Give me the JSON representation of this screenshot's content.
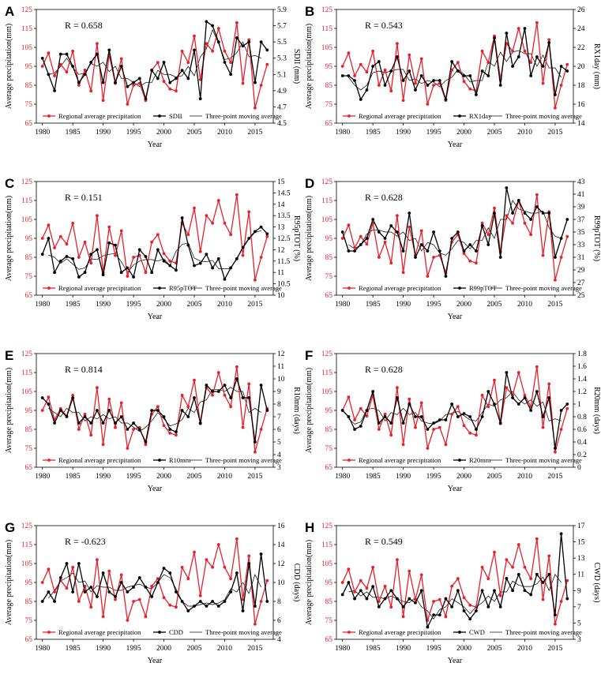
{
  "figure": {
    "x_title": "Year",
    "left_y_title": "Average precipitation(mm)",
    "legend_precip": "Regional average precipitation",
    "legend_ma": "Three-point moving average",
    "precip_color": "#e8202a",
    "index_color": "#000000"
  },
  "chart_data": [
    {
      "id": "A",
      "letter": "A",
      "type": "line",
      "r_label": "R = 0.658",
      "index_name": "SDII",
      "right_y_title": "SDII (mm)",
      "years": [
        1980,
        1981,
        1982,
        1983,
        1984,
        1985,
        1986,
        1987,
        1988,
        1989,
        1990,
        1991,
        1992,
        1993,
        1994,
        1995,
        1996,
        1997,
        1998,
        1999,
        2000,
        2001,
        2002,
        2003,
        2004,
        2005,
        2006,
        2007,
        2008,
        2009,
        2010,
        2011,
        2012,
        2013,
        2014,
        2015,
        2016,
        2017
      ],
      "precip": [
        95,
        102,
        90,
        96,
        92,
        103,
        85,
        93,
        82,
        107,
        77,
        101,
        86,
        99,
        75,
        85,
        86,
        77,
        93,
        97,
        87,
        83,
        82,
        103,
        97,
        111,
        88,
        107,
        103,
        115,
        103,
        97,
        118,
        86,
        109,
        73,
        85,
        96
      ],
      "index": [
        5.3,
        5.1,
        4.9,
        5.35,
        5.35,
        5.2,
        5.0,
        5.1,
        5.25,
        5.35,
        5.0,
        5.4,
        5.0,
        5.2,
        4.95,
        5.0,
        5.05,
        4.8,
        5.15,
        5.05,
        5.25,
        5.0,
        5.05,
        5.15,
        5.05,
        5.4,
        4.8,
        5.75,
        5.7,
        5.5,
        5.25,
        5.1,
        5.55,
        5.45,
        5.5,
        5.0,
        5.5,
        5.4
      ],
      "x_ticks": [
        1980,
        1985,
        1990,
        1995,
        2000,
        2005,
        2010,
        2015
      ],
      "left_ticks": [
        65,
        75,
        85,
        95,
        105,
        115,
        125
      ],
      "right_ticks": [
        "4.5",
        "4.7",
        "4.9",
        "5.1",
        "5.3",
        "5.5",
        "5.7",
        "5.9"
      ],
      "left_range": [
        65,
        125
      ],
      "right_range": [
        4.5,
        5.9
      ]
    },
    {
      "id": "B",
      "letter": "B",
      "type": "line",
      "r_label": "R = 0.543",
      "index_name": "RX1day",
      "right_y_title": "RX1day (mm)",
      "years": [
        1980,
        1981,
        1982,
        1983,
        1984,
        1985,
        1986,
        1987,
        1988,
        1989,
        1990,
        1991,
        1992,
        1993,
        1994,
        1995,
        1996,
        1997,
        1998,
        1999,
        2000,
        2001,
        2002,
        2003,
        2004,
        2005,
        2006,
        2007,
        2008,
        2009,
        2010,
        2011,
        2012,
        2013,
        2014,
        2015,
        2016,
        2017
      ],
      "precip": [
        95,
        102,
        90,
        96,
        92,
        103,
        85,
        93,
        82,
        107,
        77,
        101,
        86,
        99,
        75,
        85,
        86,
        77,
        93,
        97,
        87,
        83,
        82,
        103,
        97,
        111,
        88,
        107,
        103,
        115,
        103,
        97,
        118,
        86,
        109,
        73,
        85,
        96
      ],
      "index": [
        19,
        19,
        18.5,
        16.5,
        17.5,
        20,
        20.5,
        18,
        19.5,
        21,
        18.5,
        19.5,
        17.5,
        19,
        18,
        18.5,
        18.5,
        16.5,
        20.5,
        19.5,
        19,
        19,
        17,
        19.5,
        19,
        23,
        18,
        23.5,
        20,
        21,
        24,
        19,
        21,
        20,
        22.5,
        17,
        20,
        19.5
      ],
      "x_ticks": [
        1980,
        1985,
        1990,
        1995,
        2000,
        2005,
        2010,
        2015
      ],
      "left_ticks": [
        65,
        75,
        85,
        95,
        105,
        115,
        125
      ],
      "right_ticks": [
        "14",
        "16",
        "18",
        "20",
        "22",
        "24",
        "26"
      ],
      "left_range": [
        65,
        125
      ],
      "right_range": [
        14,
        26
      ]
    },
    {
      "id": "C",
      "letter": "C",
      "type": "line",
      "r_label": "R = 0.151",
      "index_name": "R95pTOT",
      "right_y_title": "R95pTOT (%)",
      "years": [
        1980,
        1981,
        1982,
        1983,
        1984,
        1985,
        1986,
        1987,
        1988,
        1989,
        1990,
        1991,
        1992,
        1993,
        1994,
        1995,
        1996,
        1997,
        1998,
        1999,
        2000,
        2001,
        2002,
        2003,
        2004,
        2005,
        2006,
        2007,
        2008,
        2009,
        2010,
        2011,
        2012,
        2013,
        2014,
        2015,
        2016,
        2017
      ],
      "precip": [
        95,
        102,
        90,
        96,
        92,
        103,
        85,
        93,
        82,
        107,
        77,
        101,
        86,
        99,
        75,
        85,
        86,
        77,
        93,
        97,
        87,
        83,
        82,
        103,
        97,
        111,
        88,
        107,
        103,
        115,
        103,
        97,
        118,
        86,
        109,
        73,
        85,
        96
      ],
      "index": [
        11.8,
        12.5,
        11.0,
        11.5,
        11.7,
        11.6,
        10.8,
        11.0,
        11.8,
        12.0,
        10.9,
        12.3,
        12.2,
        11.0,
        11.2,
        10.8,
        12.0,
        11.7,
        11.0,
        12.0,
        11.5,
        11.3,
        11.1,
        13.4,
        12.2,
        11.3,
        11.4,
        11.8,
        11.2,
        11.6,
        10.7,
        11.2,
        11.6,
        12.1,
        12.5,
        12.8,
        13.0,
        12.7
      ],
      "x_ticks": [
        1980,
        1985,
        1990,
        1995,
        2000,
        2005,
        2010,
        2015
      ],
      "left_ticks": [
        65,
        75,
        85,
        95,
        105,
        115,
        125
      ],
      "right_ticks": [
        "10",
        "10.5",
        "11",
        "11.5",
        "12",
        "12.5",
        "13",
        "13.5",
        "14",
        "14.5",
        "15"
      ],
      "left_range": [
        65,
        125
      ],
      "right_range": [
        10,
        15
      ]
    },
    {
      "id": "D",
      "letter": "D",
      "type": "line",
      "r_label": "R = 0.628",
      "index_name": "R99pTOT",
      "right_y_title": "R99pTOT (%)",
      "years": [
        1980,
        1981,
        1982,
        1983,
        1984,
        1985,
        1986,
        1987,
        1988,
        1989,
        1990,
        1991,
        1992,
        1993,
        1994,
        1995,
        1996,
        1997,
        1998,
        1999,
        2000,
        2001,
        2002,
        2003,
        2004,
        2005,
        2006,
        2007,
        2008,
        2009,
        2010,
        2011,
        2012,
        2013,
        2014,
        2015,
        2016,
        2017
      ],
      "precip": [
        95,
        102,
        90,
        96,
        92,
        103,
        85,
        93,
        82,
        107,
        77,
        101,
        86,
        99,
        75,
        85,
        86,
        77,
        93,
        97,
        87,
        83,
        82,
        103,
        97,
        111,
        88,
        107,
        103,
        115,
        103,
        97,
        118,
        86,
        109,
        73,
        85,
        96
      ],
      "index": [
        35,
        32,
        32,
        33,
        34,
        37,
        35,
        34,
        36,
        35,
        32,
        38,
        31,
        33,
        32,
        35,
        32,
        28,
        34,
        35,
        32,
        33,
        32,
        36,
        33,
        38,
        31,
        42,
        38,
        40,
        38,
        37,
        39,
        38,
        38,
        31,
        34,
        37
      ],
      "x_ticks": [
        1980,
        1985,
        1990,
        1995,
        2000,
        2005,
        2010,
        2015
      ],
      "left_ticks": [
        65,
        75,
        85,
        95,
        105,
        115,
        125
      ],
      "right_ticks": [
        "25",
        "27",
        "29",
        "31",
        "33",
        "35",
        "37",
        "39",
        "41",
        "43"
      ],
      "left_range": [
        65,
        125
      ],
      "right_range": [
        25,
        43
      ]
    },
    {
      "id": "E",
      "letter": "E",
      "type": "line",
      "r_label": "R = 0.814",
      "index_name": "R10mm",
      "right_y_title": "R10mm (days)",
      "years": [
        1980,
        1981,
        1982,
        1983,
        1984,
        1985,
        1986,
        1987,
        1988,
        1989,
        1990,
        1991,
        1992,
        1993,
        1994,
        1995,
        1996,
        1997,
        1998,
        1999,
        2000,
        2001,
        2002,
        2003,
        2004,
        2005,
        2006,
        2007,
        2008,
        2009,
        2010,
        2011,
        2012,
        2013,
        2014,
        2015,
        2016,
        2017
      ],
      "precip": [
        95,
        102,
        90,
        96,
        92,
        103,
        85,
        93,
        82,
        107,
        77,
        101,
        86,
        99,
        75,
        85,
        86,
        77,
        93,
        97,
        87,
        83,
        82,
        103,
        97,
        111,
        88,
        107,
        103,
        115,
        103,
        97,
        118,
        86,
        109,
        73,
        85,
        96
      ],
      "index": [
        8.5,
        8,
        6.5,
        7.5,
        7,
        8.5,
        6.5,
        7,
        6.5,
        7.5,
        6.5,
        7.5,
        6.5,
        7,
        6,
        6.5,
        6,
        5,
        7.5,
        7.5,
        7,
        6,
        5.8,
        7.5,
        7,
        8.5,
        6.5,
        9.5,
        9,
        9,
        9.5,
        8.5,
        10,
        8.5,
        8.5,
        5,
        9.5,
        7.5
      ],
      "x_ticks": [
        1980,
        1985,
        1990,
        1995,
        2000,
        2005,
        2010,
        2015
      ],
      "left_ticks": [
        65,
        75,
        85,
        95,
        105,
        115,
        125
      ],
      "right_ticks": [
        "3",
        "4",
        "5",
        "6",
        "7",
        "8",
        "9",
        "10",
        "11",
        "12"
      ],
      "left_range": [
        65,
        125
      ],
      "right_range": [
        3,
        12
      ]
    },
    {
      "id": "F",
      "letter": "F",
      "type": "line",
      "r_label": "R = 0.628",
      "index_name": "R20mm",
      "right_y_title": "R20mm (days)",
      "years": [
        1980,
        1981,
        1982,
        1983,
        1984,
        1985,
        1986,
        1987,
        1988,
        1989,
        1990,
        1991,
        1992,
        1993,
        1994,
        1995,
        1996,
        1997,
        1998,
        1999,
        2000,
        2001,
        2002,
        2003,
        2004,
        2005,
        2006,
        2007,
        2008,
        2009,
        2010,
        2011,
        2012,
        2013,
        2014,
        2015,
        2016,
        2017
      ],
      "precip": [
        95,
        102,
        90,
        96,
        92,
        103,
        85,
        93,
        82,
        107,
        77,
        101,
        86,
        99,
        75,
        85,
        86,
        77,
        93,
        97,
        87,
        83,
        82,
        103,
        97,
        111,
        88,
        107,
        103,
        115,
        103,
        97,
        118,
        86,
        109,
        73,
        85,
        96
      ],
      "index": [
        0.9,
        0.8,
        0.6,
        0.65,
        0.9,
        1.2,
        0.7,
        0.8,
        0.7,
        1.1,
        0.7,
        1.0,
        0.8,
        0.8,
        0.6,
        0.7,
        0.75,
        0.75,
        1.0,
        0.8,
        0.85,
        0.8,
        0.6,
        0.8,
        1.2,
        1.0,
        0.7,
        1.5,
        1.1,
        1.0,
        1.1,
        0.9,
        1.2,
        0.8,
        1.1,
        0.3,
        0.9,
        1.0
      ],
      "x_ticks": [
        1980,
        1985,
        1990,
        1995,
        2000,
        2005,
        2010,
        2015
      ],
      "left_ticks": [
        65,
        75,
        85,
        95,
        105,
        115,
        125
      ],
      "right_ticks": [
        "0",
        "0.2",
        "0.4",
        "0.6",
        "0.8",
        "1",
        "1.2",
        "1.4",
        "1.6",
        "1.8"
      ],
      "left_range": [
        65,
        125
      ],
      "right_range": [
        0,
        1.8
      ]
    },
    {
      "id": "G",
      "letter": "G",
      "type": "line",
      "r_label": "R = -0.623",
      "index_name": "CDD",
      "right_y_title": "CDD (days)",
      "years": [
        1980,
        1981,
        1982,
        1983,
        1984,
        1985,
        1986,
        1987,
        1988,
        1989,
        1990,
        1991,
        1992,
        1993,
        1994,
        1995,
        1996,
        1997,
        1998,
        1999,
        2000,
        2001,
        2002,
        2003,
        2004,
        2005,
        2006,
        2007,
        2008,
        2009,
        2010,
        2011,
        2012,
        2013,
        2014,
        2015,
        2016,
        2017
      ],
      "precip": [
        95,
        102,
        90,
        96,
        92,
        103,
        85,
        93,
        82,
        107,
        77,
        101,
        86,
        99,
        75,
        85,
        86,
        77,
        93,
        97,
        87,
        83,
        82,
        103,
        97,
        111,
        88,
        107,
        103,
        115,
        103,
        97,
        118,
        86,
        109,
        73,
        85,
        96
      ],
      "index": [
        8,
        9,
        8,
        10.5,
        12,
        9,
        12,
        9,
        9.5,
        8.5,
        11,
        9,
        8.5,
        10,
        9,
        9.5,
        10.5,
        9.5,
        8.5,
        10,
        11.5,
        11,
        9,
        8,
        7,
        7.5,
        8,
        7.5,
        8,
        7.5,
        8,
        9,
        11,
        7,
        12,
        7.5,
        13,
        8
      ],
      "x_ticks": [
        1980,
        1985,
        1990,
        1995,
        2000,
        2005,
        2010,
        2015
      ],
      "left_ticks": [
        65,
        75,
        85,
        95,
        105,
        115,
        125
      ],
      "right_ticks": [
        "4",
        "6",
        "8",
        "10",
        "12",
        "14",
        "16"
      ],
      "left_range": [
        65,
        125
      ],
      "right_range": [
        4,
        16
      ]
    },
    {
      "id": "H",
      "letter": "H",
      "type": "line",
      "r_label": "R = 0.549",
      "index_name": "CWD",
      "right_y_title": "CWD (days)",
      "years": [
        1980,
        1981,
        1982,
        1983,
        1984,
        1985,
        1986,
        1987,
        1988,
        1989,
        1990,
        1991,
        1992,
        1993,
        1994,
        1995,
        1996,
        1997,
        1998,
        1999,
        2000,
        2001,
        2002,
        2003,
        2004,
        2005,
        2006,
        2007,
        2008,
        2009,
        2010,
        2011,
        2012,
        2013,
        2014,
        2015,
        2016,
        2017
      ],
      "precip": [
        95,
        102,
        90,
        96,
        92,
        103,
        85,
        93,
        82,
        107,
        77,
        101,
        86,
        99,
        75,
        85,
        86,
        77,
        93,
        97,
        87,
        83,
        82,
        103,
        97,
        111,
        88,
        107,
        103,
        115,
        103,
        97,
        118,
        86,
        109,
        73,
        85,
        96
      ],
      "index": [
        8.5,
        10,
        8,
        9,
        8,
        9.5,
        7,
        8,
        9,
        8,
        7,
        8,
        7.5,
        9,
        4.5,
        6,
        6,
        8,
        7,
        9,
        6.5,
        5.5,
        6.5,
        9,
        7,
        9,
        7,
        10.5,
        9,
        11,
        9,
        8.5,
        11,
        10,
        11,
        6,
        16,
        8
      ],
      "x_ticks": [
        1980,
        1985,
        1990,
        1995,
        2000,
        2005,
        2010,
        2015
      ],
      "left_ticks": [
        65,
        75,
        85,
        95,
        105,
        115,
        125
      ],
      "right_ticks": [
        "3",
        "5",
        "7",
        "9",
        "11",
        "13",
        "15",
        "17"
      ],
      "left_range": [
        65,
        125
      ],
      "right_range": [
        3,
        17
      ]
    }
  ]
}
